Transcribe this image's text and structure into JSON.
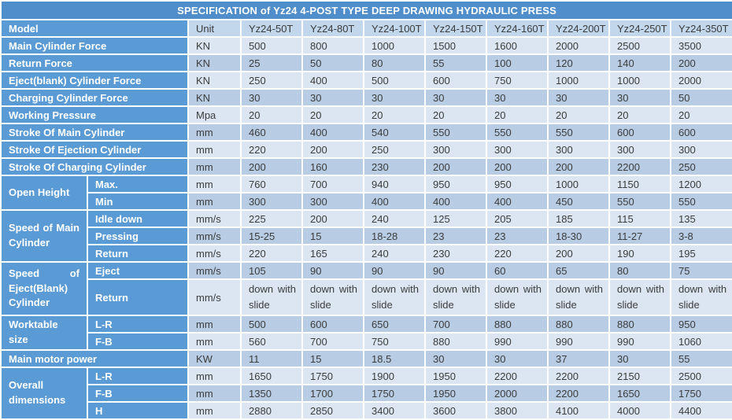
{
  "table": {
    "title": "SPECIFICATION of Yz24 4-POST TYPE DEEP DRAWING HYDRAULIC PRESS",
    "header": {
      "label": "Model",
      "unit": "Unit",
      "models": [
        "Yz24-50T",
        "Yz24-80T",
        "Yz24-100T",
        "Yz24-150T",
        "Yz24-160T",
        "Yz24-200T",
        "Yz24-250T",
        "Yz24-350T"
      ]
    },
    "colors": {
      "title_bar": "#4f8dcb",
      "label_blue": "#5b9bd5",
      "header_row": "#c2d6ec",
      "row_light": "#dce6f2",
      "row_medium": "#b8cce4",
      "data_text": "#3c3c3c"
    },
    "rows": [
      {
        "label": "Main Cylinder Force",
        "unit": "KN",
        "values": [
          "500",
          "800",
          "1000",
          "1500",
          "1600",
          "2000",
          "2500",
          "3500"
        ]
      },
      {
        "label": "Return Force",
        "unit": "KN",
        "values": [
          "25",
          "50",
          "80",
          "55",
          "100",
          "120",
          "140",
          "200"
        ]
      },
      {
        "label": "Eject(blank) Cylinder Force",
        "unit": "KN",
        "values": [
          "250",
          "400",
          "500",
          "600",
          "750",
          "1000",
          "1000",
          "2000"
        ]
      },
      {
        "label": "Charging Cylinder Force",
        "unit": "KN",
        "values": [
          "30",
          "30",
          "30",
          "30",
          "30",
          "30",
          "30",
          "50"
        ]
      },
      {
        "label": "Working Pressure",
        "unit": "Mpa",
        "values": [
          "20",
          "20",
          "20",
          "20",
          "20",
          "20",
          "20",
          "20"
        ]
      },
      {
        "label": "Stroke Of Main Cylinder",
        "unit": "mm",
        "values": [
          "460",
          "400",
          "540",
          "550",
          "550",
          "550",
          "600",
          "600"
        ]
      },
      {
        "label": "Stroke Of Ejection Cylinder",
        "unit": "mm",
        "values": [
          "220",
          "200",
          "250",
          "300",
          "300",
          "300",
          "300",
          "300"
        ]
      },
      {
        "label": "Stroke Of Charging Cylinder",
        "unit": "mm",
        "values": [
          "200",
          "160",
          "230",
          "200",
          "200",
          "200",
          "2200",
          "250"
        ]
      },
      {
        "group": "Open Height",
        "span": 2,
        "sub": "Max.",
        "unit": "mm",
        "values": [
          "760",
          "700",
          "940",
          "950",
          "950",
          "1000",
          "1150",
          "1200"
        ]
      },
      {
        "sub": "Min",
        "unit": "mm",
        "values": [
          "300",
          "300",
          "400",
          "400",
          "400",
          "450",
          "550",
          "550"
        ]
      },
      {
        "group": "Speed of Main Cylinder",
        "span": 3,
        "sub": "Idle down",
        "unit": "mm/s",
        "values": [
          "225",
          "200",
          "240",
          "125",
          "205",
          "185",
          "115",
          "135"
        ]
      },
      {
        "sub": "Pressing",
        "unit": "mm/s",
        "values": [
          "15-25",
          "15",
          "18-28",
          "23",
          "23",
          "18-30",
          "11-27",
          "3-8"
        ]
      },
      {
        "sub": "Return",
        "unit": "mm/s",
        "values": [
          "220",
          "165",
          "240",
          "230",
          "220",
          "200",
          "190",
          "195"
        ]
      },
      {
        "group": "Speed of Eject(Blank) Cylinder",
        "span": 2,
        "sub": "Eject",
        "unit": "mm/s",
        "values": [
          "105",
          "90",
          "90",
          "90",
          "60",
          "65",
          "80",
          "75"
        ]
      },
      {
        "sub": "Return",
        "unit": "mm/s",
        "values": [
          "down with slide",
          "down with slide",
          "down with slide",
          "down with slide",
          "down with slide",
          "down with slide",
          "down with slide",
          "down with slide"
        ]
      },
      {
        "group": "Worktable size",
        "span": 2,
        "sub": "L-R",
        "unit": "mm",
        "values": [
          "500",
          "600",
          "650",
          "700",
          "880",
          "880",
          "880",
          "950"
        ]
      },
      {
        "sub": "F-B",
        "unit": "mm",
        "values": [
          "560",
          "700",
          "750",
          "880",
          "990",
          "990",
          "990",
          "1060"
        ]
      },
      {
        "label": "Main motor power",
        "unit": "KW",
        "values": [
          "11",
          "15",
          "18.5",
          "30",
          "30",
          "37",
          "30",
          "55"
        ]
      },
      {
        "group": "Overall dimensions",
        "span": 3,
        "sub": "L-R",
        "unit": "mm",
        "values": [
          "1650",
          "1750",
          "1900",
          "1950",
          "2200",
          "2200",
          "2150",
          "2500"
        ]
      },
      {
        "sub": "F-B",
        "unit": "mm",
        "values": [
          "1350",
          "1700",
          "1750",
          "1950",
          "2000",
          "2200",
          "1650",
          "1750"
        ]
      },
      {
        "sub": "H",
        "unit": "mm",
        "values": [
          "2880",
          "2850",
          "3400",
          "3600",
          "3800",
          "4100",
          "4000",
          "4400"
        ]
      }
    ]
  }
}
